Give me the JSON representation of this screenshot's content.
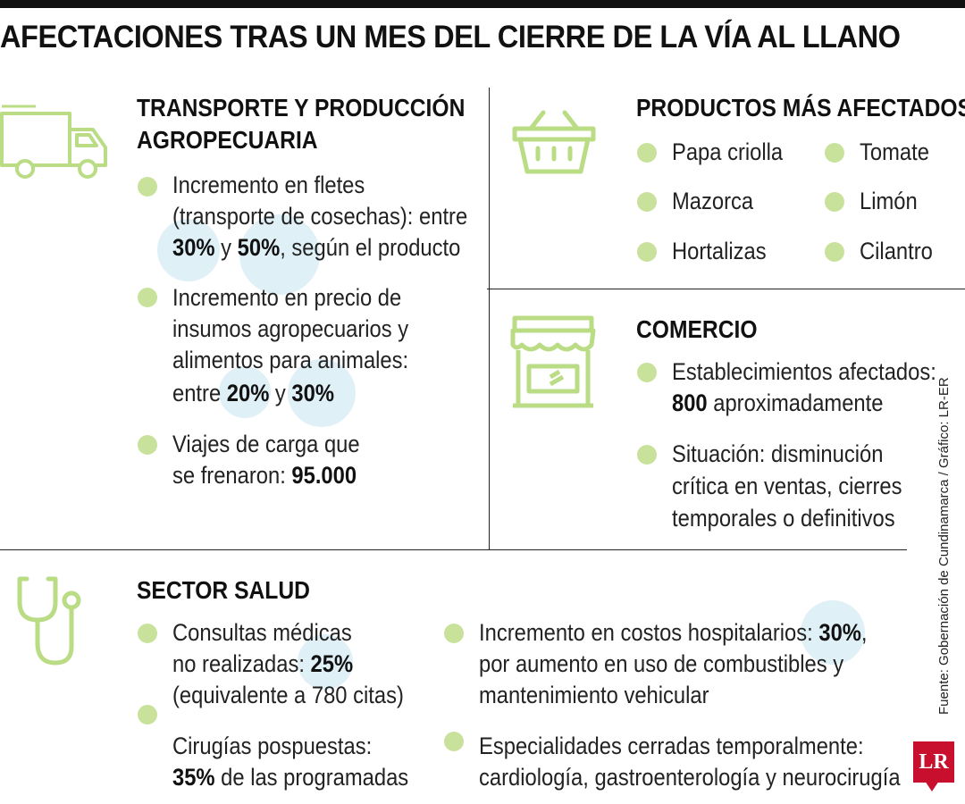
{
  "title": "AFECTACIONES TRAS UN MES DEL CIERRE DE LA VÍA AL LLANO",
  "colors": {
    "accent": "#c8e29c",
    "icon": "#b9dc84",
    "halo": "#dff0f7",
    "brand": "#c8102e"
  },
  "transporte": {
    "title_line1": "TRANSPORTE Y PRODUCCIÓN",
    "title_line2": "AGROPECUARIA",
    "icon": "truck-icon",
    "b1": {
      "l1": "Incremento en fletes",
      "l2": "(transporte de cosechas): entre",
      "v1": "30%",
      "and": " y ",
      "v2": "50%",
      "rest": ", según el producto"
    },
    "b2": {
      "l1": "Incremento en precio de",
      "l2": "insumos agropecuarios y",
      "l3": "alimentos para animales:",
      "pre": "entre ",
      "v1": "20%",
      "and": " y ",
      "v2": "30%"
    },
    "b3": {
      "l1": "Viajes de carga que",
      "pre": "se frenaron: ",
      "v": "95.000"
    }
  },
  "productos": {
    "title": "PRODUCTOS MÁS AFECTADOS",
    "icon": "basket-icon",
    "items": [
      "Papa criolla",
      "Tomate",
      "Mazorca",
      "Limón",
      "Hortalizas",
      "Cilantro"
    ]
  },
  "comercio": {
    "title": "COMERCIO",
    "icon": "storefront-icon",
    "b1": {
      "l1": "Establecimientos afectados:",
      "v": "800",
      "rest": " aproximadamente"
    },
    "b2": {
      "l1": "Situación: disminución",
      "l2": "crítica en ventas, cierres",
      "l3": "temporales o definitivos"
    }
  },
  "salud": {
    "title": "SECTOR SALUD",
    "icon": "stethoscope-icon",
    "b1": {
      "l1": "Consultas médicas",
      "pre": "no realizadas: ",
      "v": "25%",
      "l3": "(equivalente a 780 citas)"
    },
    "b2": {
      "l1": "Cirugías pospuestas:",
      "v": "35%",
      "rest": " de las programadas"
    },
    "b3": {
      "pre": "Incremento en costos hospitalarios: ",
      "v": "30%",
      "comma": ",",
      "l2": "por aumento en uso de combustibles y",
      "l3": "mantenimiento vehicular"
    },
    "b4": {
      "l1": "Especialidades cerradas temporalmente:",
      "l2": "cardiología, gastroenterología y neurocirugía"
    }
  },
  "source": "Fuente: Gobernación de Cundinamarca / Gráfico: LR-ER",
  "logo": "LR"
}
